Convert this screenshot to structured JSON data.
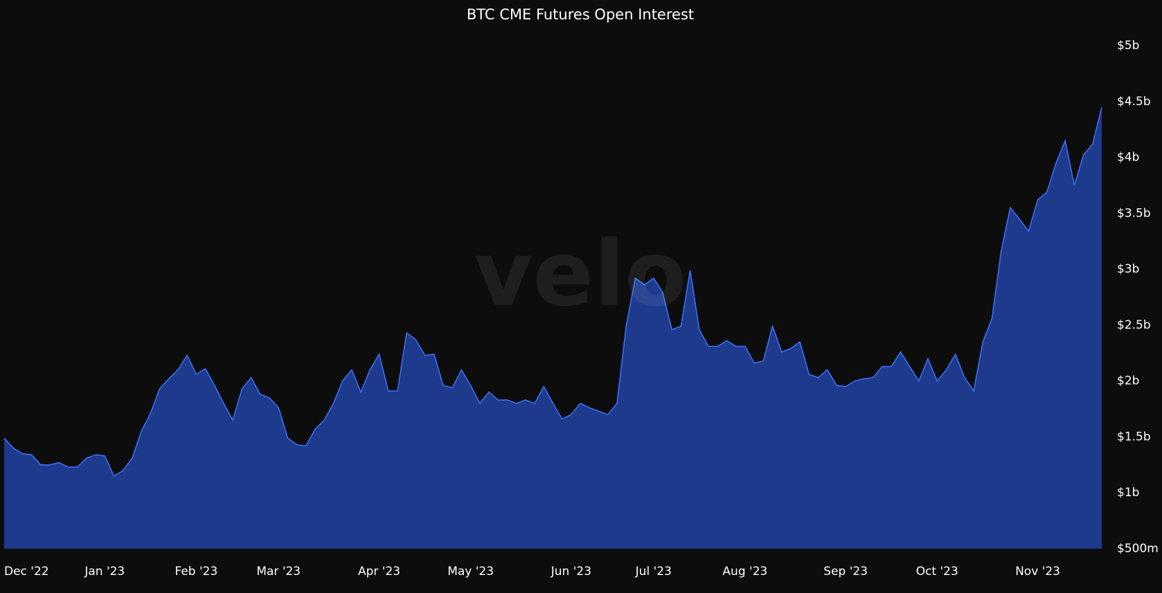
{
  "chart_data": {
    "type": "area",
    "title": "BTC CME Futures Open Interest",
    "watermark": "velo",
    "categories": [
      "Dec '22",
      null,
      null,
      null,
      null,
      null,
      null,
      null,
      null,
      null,
      null,
      "Jan '23",
      null,
      null,
      null,
      null,
      null,
      null,
      null,
      null,
      null,
      "Feb '23",
      null,
      null,
      null,
      null,
      null,
      null,
      null,
      null,
      "Mar '23",
      null,
      null,
      null,
      null,
      null,
      null,
      null,
      null,
      null,
      null,
      "Apr '23",
      null,
      null,
      null,
      null,
      null,
      null,
      null,
      null,
      null,
      "May '23",
      null,
      null,
      null,
      null,
      null,
      null,
      null,
      null,
      null,
      null,
      "Jun '23",
      null,
      null,
      null,
      null,
      null,
      null,
      null,
      null,
      "Jul '23",
      null,
      null,
      null,
      null,
      null,
      null,
      null,
      null,
      null,
      "Aug '23",
      null,
      null,
      null,
      null,
      null,
      null,
      null,
      null,
      null,
      null,
      "Sep '23",
      null,
      null,
      null,
      null,
      null,
      null,
      null,
      null,
      null,
      "Oct '23",
      null,
      null,
      null,
      null,
      null,
      null,
      null,
      null,
      null,
      null,
      "Nov '23",
      null,
      null,
      null,
      null,
      null,
      null,
      null
    ],
    "values": [
      1.49,
      1.4,
      1.35,
      1.34,
      1.25,
      1.25,
      1.27,
      1.23,
      1.23,
      1.31,
      1.34,
      1.33,
      1.15,
      1.2,
      1.31,
      1.55,
      1.71,
      1.93,
      2.02,
      2.1,
      2.23,
      2.06,
      2.11,
      1.96,
      1.8,
      1.65,
      1.93,
      2.03,
      1.88,
      1.85,
      1.76,
      1.49,
      1.43,
      1.42,
      1.57,
      1.65,
      1.8,
      2.0,
      2.1,
      1.9,
      2.1,
      2.24,
      1.91,
      1.91,
      2.43,
      2.37,
      2.23,
      2.24,
      1.96,
      1.94,
      2.1,
      1.96,
      1.8,
      1.9,
      1.83,
      1.83,
      1.8,
      1.83,
      1.8,
      1.95,
      1.8,
      1.66,
      1.7,
      1.8,
      1.76,
      1.73,
      1.7,
      1.8,
      2.49,
      2.92,
      2.86,
      2.92,
      2.79,
      2.46,
      2.49,
      2.99,
      2.46,
      2.31,
      2.31,
      2.36,
      2.31,
      2.31,
      2.16,
      2.18,
      2.49,
      2.26,
      2.29,
      2.35,
      2.06,
      2.03,
      2.1,
      1.96,
      1.95,
      2.0,
      2.02,
      2.03,
      2.13,
      2.13,
      2.26,
      2.13,
      2.0,
      2.2,
      2.0,
      2.1,
      2.24,
      2.03,
      1.91,
      2.35,
      2.56,
      3.16,
      3.55,
      3.45,
      3.34,
      3.62,
      3.69,
      3.95,
      4.15,
      3.75,
      4.02,
      4.12,
      4.45
    ],
    "color": "#1d3a8c",
    "line_color": "#3d6ef5",
    "ylim": [
      0.5,
      5
    ],
    "yticks": [
      {
        "value": 0.5,
        "label": "$500m"
      },
      {
        "value": 1,
        "label": "$1b"
      },
      {
        "value": 1.5,
        "label": "$1.5b"
      },
      {
        "value": 2,
        "label": "$2b"
      },
      {
        "value": 2.5,
        "label": "$2.5b"
      },
      {
        "value": 3,
        "label": "$3b"
      },
      {
        "value": 3.5,
        "label": "$3.5b"
      },
      {
        "value": 4,
        "label": "$4b"
      },
      {
        "value": 4.5,
        "label": "$4.5b"
      },
      {
        "value": 5,
        "label": "$5b"
      }
    ],
    "grid": false
  }
}
